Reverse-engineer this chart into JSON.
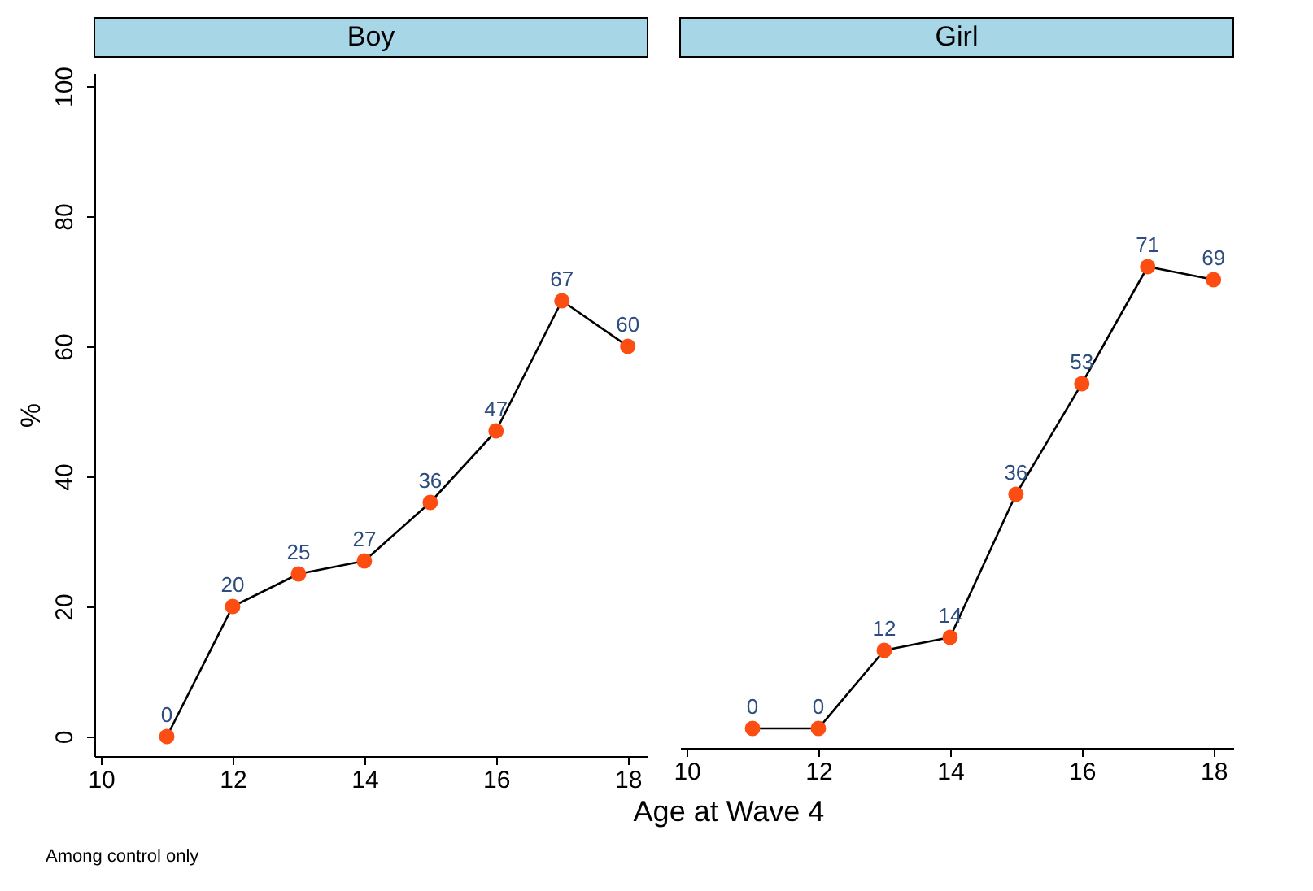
{
  "chart_data": [
    {
      "type": "line",
      "title": "Boy",
      "ylabel": "%",
      "xlabel": "Age at Wave 4",
      "annotations": [
        "Among control only"
      ],
      "x": [
        11,
        12,
        13,
        14,
        15,
        16,
        17,
        18
      ],
      "series": [
        {
          "color": "#fc4e12",
          "values": [
            0,
            20,
            25,
            27,
            36,
            47,
            67,
            60
          ]
        }
      ],
      "xlim": [
        9.9,
        18.3
      ],
      "xticks": [
        10,
        12,
        14,
        16,
        18
      ],
      "ylim": [
        -3,
        102
      ],
      "yticks": [
        0,
        20,
        40,
        60,
        80,
        100
      ],
      "marker": "circle",
      "data_labels": true,
      "grid": false
    },
    {
      "type": "line",
      "title": "Girl",
      "x": [
        11,
        12,
        13,
        14,
        15,
        16,
        17,
        18
      ],
      "series": [
        {
          "color": "#fc4e12",
          "values": [
            0,
            0,
            12,
            14,
            36,
            53,
            71,
            69
          ]
        }
      ],
      "xlim": [
        9.9,
        18.3
      ],
      "xticks": [
        10,
        12,
        14,
        16,
        18
      ],
      "tick_labels": "x",
      "marker": "circle",
      "data_labels": true,
      "grid": false
    }
  ]
}
